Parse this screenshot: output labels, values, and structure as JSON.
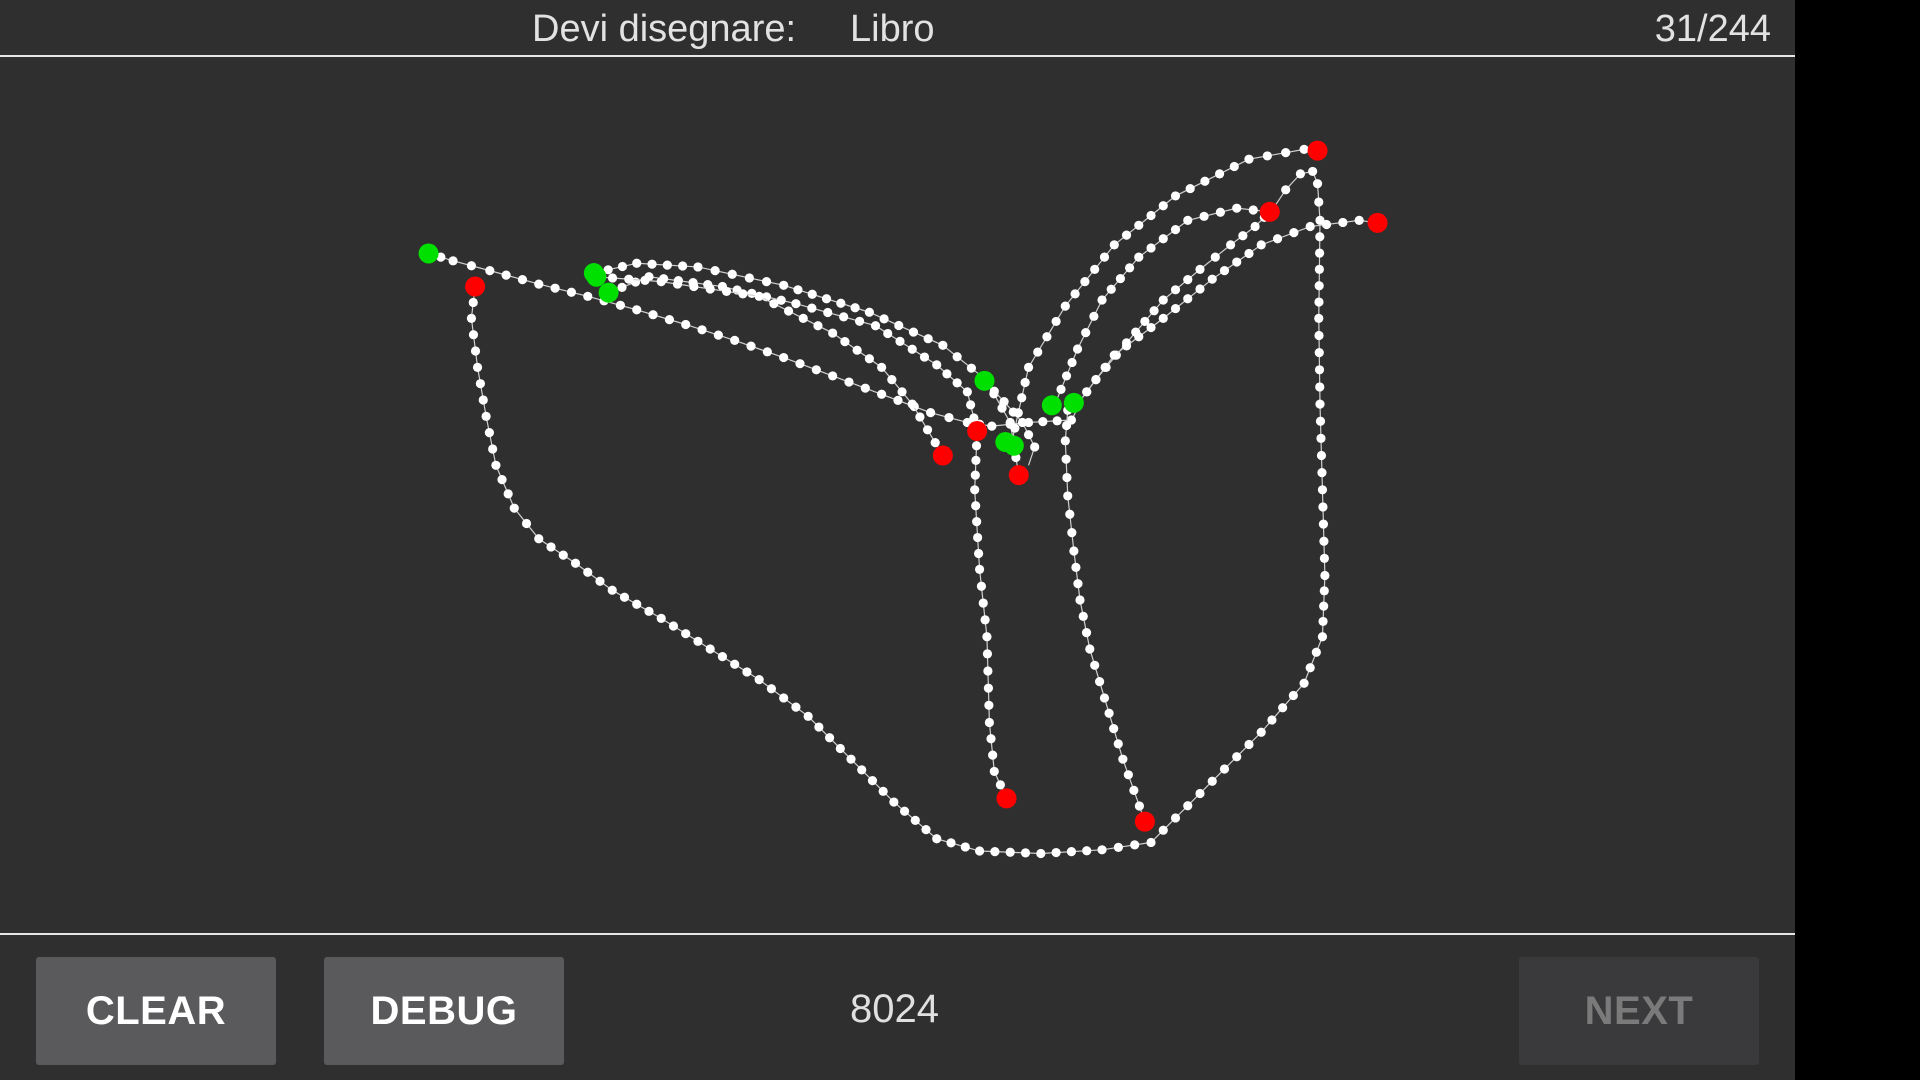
{
  "header": {
    "prompt_label": "Devi disegnare:",
    "prompt_word": "Libro",
    "counter": "31/244"
  },
  "footer": {
    "clear_label": "CLEAR",
    "debug_label": "DEBUG",
    "score": "8024",
    "next_label": "NEXT",
    "next_enabled": false
  },
  "colors": {
    "background": "#2f2f2f",
    "stroke": "#ffffff",
    "start_point": "#00e000",
    "end_point": "#ff0000",
    "button": "#5a5a5c",
    "button_disabled": "#3a3a3c"
  }
}
